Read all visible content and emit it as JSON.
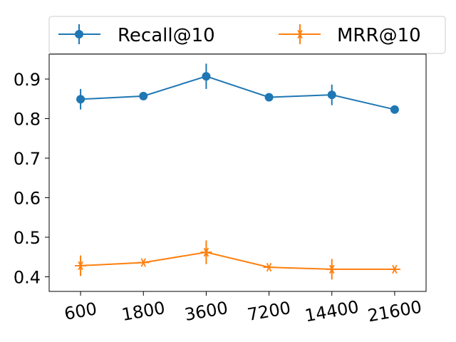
{
  "chart_data": {
    "type": "line",
    "categories": [
      "600",
      "1800",
      "3600",
      "7200",
      "14400",
      "21600"
    ],
    "series": [
      {
        "name": "Recall@10",
        "color": "#1f77b4",
        "marker": "circle",
        "values": [
          0.849,
          0.857,
          0.907,
          0.854,
          0.86,
          0.823
        ],
        "errors": [
          0.026,
          0.005,
          0.032,
          0.004,
          0.026,
          0.004
        ]
      },
      {
        "name": "MRR@10",
        "color": "#ff7f0e",
        "marker": "x-star",
        "values": [
          0.428,
          0.436,
          0.462,
          0.424,
          0.419,
          0.419
        ],
        "errors": [
          0.026,
          0.004,
          0.03,
          0.004,
          0.026,
          0.004
        ]
      }
    ],
    "yticks": [
      "0.4",
      "0.5",
      "0.6",
      "0.7",
      "0.8",
      "0.9"
    ],
    "ylim": [
      0.363,
      0.963
    ],
    "xlabel": "",
    "ylabel": "",
    "title": "",
    "grid": false,
    "legend_position": "top"
  }
}
